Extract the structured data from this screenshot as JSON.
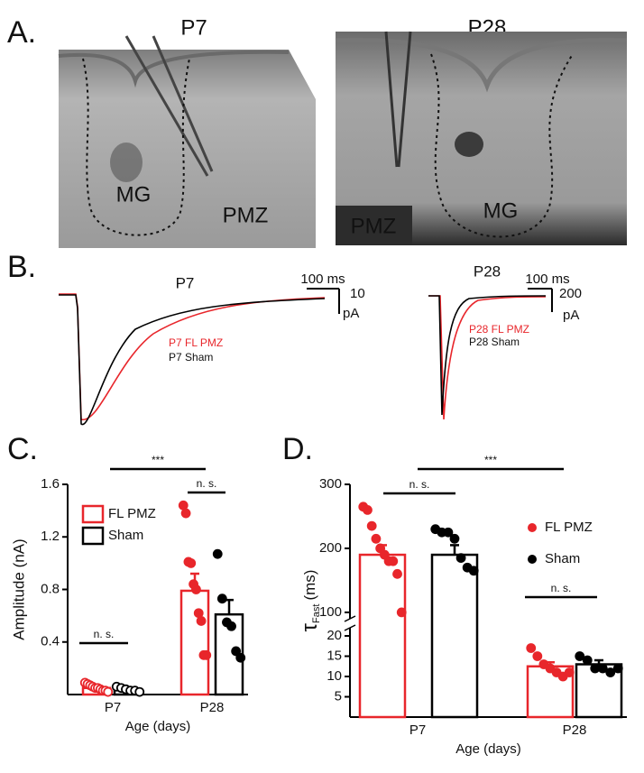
{
  "panels": {
    "A": {
      "label": "A.",
      "left": {
        "title": "P7",
        "labels": [
          "MG",
          "PMZ"
        ]
      },
      "right": {
        "title": "P28",
        "labels": [
          "MG",
          "PMZ"
        ]
      }
    },
    "B": {
      "label": "B.",
      "left": {
        "title": "P7",
        "scale_x": "100 ms",
        "scale_y": [
          "10",
          "pA"
        ],
        "legend": [
          "P7 FL PMZ",
          "P7 Sham"
        ]
      },
      "right": {
        "title": "P28",
        "scale_x": "100 ms",
        "scale_y": [
          "200",
          "pA"
        ],
        "legend": [
          "P28 FL PMZ",
          "P28 Sham"
        ]
      }
    }
  },
  "chart_data": [
    {
      "panel_label": "C.",
      "type": "bar",
      "xlabel": "Age (days)",
      "ylabel": "Amplitude (nA)",
      "categories": [
        "P7",
        "P28"
      ],
      "ylim": [
        0,
        1.6
      ],
      "yticks": [
        0.4,
        0.8,
        1.2,
        1.6
      ],
      "point_fill": [
        "open",
        "filled"
      ],
      "legend_marker": "square",
      "series": [
        {
          "name": "FL PMZ",
          "color": "#e8262b",
          "values": [
            0.05,
            0.79
          ],
          "errors": [
            0.01,
            0.13
          ],
          "points": [
            [
              0.09,
              0.08,
              0.07,
              0.06,
              0.05,
              0.05,
              0.04,
              0.03,
              0.03,
              0.02
            ],
            [
              1.44,
              1.38,
              1.01,
              1.0,
              0.84,
              0.8,
              0.62,
              0.56,
              0.3,
              0.3
            ]
          ]
        },
        {
          "name": "Sham",
          "color": "#000000",
          "values": [
            0.04,
            0.61
          ],
          "errors": [
            0.01,
            0.11
          ],
          "points": [
            [
              0.06,
              0.05,
              0.04,
              0.03,
              0.03,
              0.02
            ],
            [
              1.07,
              0.73,
              0.55,
              0.52,
              0.33,
              0.28
            ]
          ]
        }
      ],
      "annotations": [
        "***",
        "n. s.",
        "n. s."
      ]
    },
    {
      "panel_label": "D.",
      "type": "bar",
      "xlabel": "Age (days)",
      "ylabel": {
        "symbol": "τ",
        "subscript": "Fast",
        "unit": "(ms)"
      },
      "categories": [
        "P7",
        "P28"
      ],
      "ylim": [
        0,
        300
      ],
      "y_break": [
        22,
        90
      ],
      "yticks": [
        5,
        10,
        15,
        20,
        100,
        200,
        300
      ],
      "point_fill": [
        "filled",
        "filled"
      ],
      "legend_marker": "dot",
      "series": [
        {
          "name": "FL PMZ",
          "color": "#e8262b",
          "values": [
            190,
            12.5
          ],
          "errors": [
            15,
            1
          ],
          "points": [
            [
              265,
              260,
              235,
              215,
              200,
              190,
              180,
              180,
              160,
              100
            ],
            [
              17,
              15,
              13,
              12,
              11,
              10,
              11
            ]
          ]
        },
        {
          "name": "Sham",
          "color": "#000000",
          "values": [
            190,
            13
          ],
          "errors": [
            15,
            1
          ],
          "points": [
            [
              230,
              225,
              225,
              215,
              185,
              170,
              165
            ],
            [
              15,
              14,
              12,
              12,
              11,
              12
            ]
          ]
        }
      ],
      "annotations": [
        "***",
        "n. s.",
        "n. s."
      ]
    }
  ]
}
